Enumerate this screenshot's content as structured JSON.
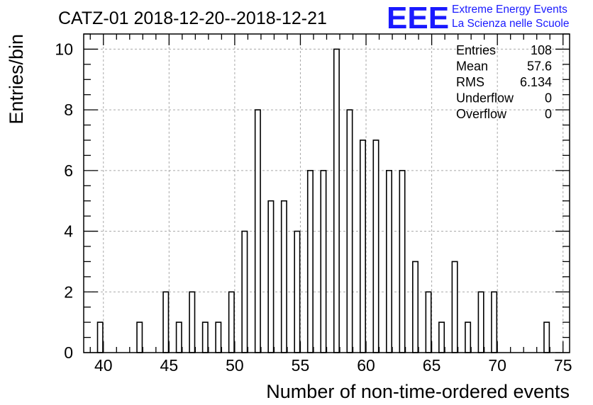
{
  "chart_data": {
    "type": "bar",
    "title": "CATZ-01 2018-12-20--2018-12-21",
    "xlabel": "Number of non-time-ordered events",
    "ylabel": "Entries/bin",
    "xlim": [
      38.5,
      75.5
    ],
    "ylim": [
      0,
      10.5
    ],
    "x_ticks": [
      40,
      45,
      50,
      55,
      60,
      65,
      70,
      75
    ],
    "y_ticks": [
      0,
      2,
      4,
      6,
      8,
      10
    ],
    "grid": true,
    "bin_width": 1,
    "bins": [
      {
        "x": 40,
        "y": 1
      },
      {
        "x": 43,
        "y": 1
      },
      {
        "x": 45,
        "y": 2
      },
      {
        "x": 46,
        "y": 1
      },
      {
        "x": 47,
        "y": 2
      },
      {
        "x": 48,
        "y": 1
      },
      {
        "x": 49,
        "y": 1
      },
      {
        "x": 50,
        "y": 2
      },
      {
        "x": 51,
        "y": 4
      },
      {
        "x": 52,
        "y": 8
      },
      {
        "x": 53,
        "y": 5
      },
      {
        "x": 54,
        "y": 5
      },
      {
        "x": 55,
        "y": 4
      },
      {
        "x": 56,
        "y": 6
      },
      {
        "x": 57,
        "y": 6
      },
      {
        "x": 58,
        "y": 10
      },
      {
        "x": 59,
        "y": 8
      },
      {
        "x": 60,
        "y": 7
      },
      {
        "x": 61,
        "y": 7
      },
      {
        "x": 62,
        "y": 6
      },
      {
        "x": 63,
        "y": 6
      },
      {
        "x": 64,
        "y": 3
      },
      {
        "x": 65,
        "y": 2
      },
      {
        "x": 66,
        "y": 1
      },
      {
        "x": 67,
        "y": 3
      },
      {
        "x": 68,
        "y": 1
      },
      {
        "x": 69,
        "y": 2
      },
      {
        "x": 70,
        "y": 2
      },
      {
        "x": 74,
        "y": 1
      }
    ],
    "stats": [
      {
        "label": "Entries",
        "value": "108"
      },
      {
        "label": "Mean",
        "value": "57.6"
      },
      {
        "label": "RMS",
        "value": "6.134"
      },
      {
        "label": "Underflow",
        "value": "0"
      },
      {
        "label": "Overflow",
        "value": "0"
      }
    ],
    "stats_placement": "top-right"
  },
  "logo": {
    "mark": "EEE",
    "line1": "Extreme Energy Events",
    "line2": "La Scienza nelle Scuole",
    "color": "#1a1aff"
  }
}
